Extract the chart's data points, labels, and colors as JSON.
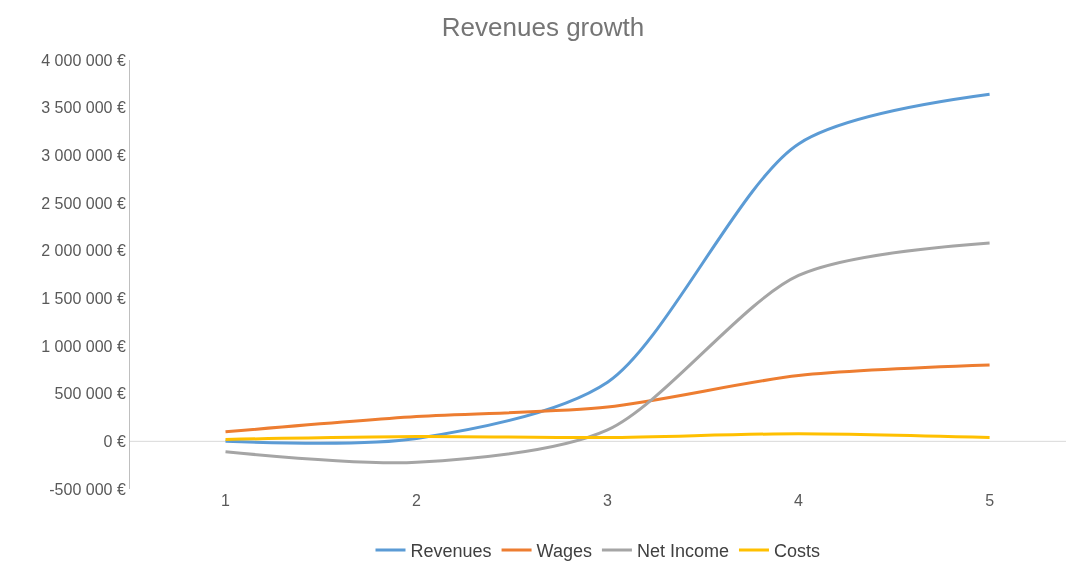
{
  "chart_data": {
    "type": "line",
    "title": "Revenues growth",
    "categories": [
      "1",
      "2",
      "3",
      "4",
      "5"
    ],
    "series": [
      {
        "name": "Revenues",
        "color": "#5b9bd5",
        "values": [
          0,
          30000,
          620000,
          3120000,
          3640000
        ]
      },
      {
        "name": "Wages",
        "color": "#ed7d31",
        "values": [
          100000,
          260000,
          360000,
          690000,
          800000
        ]
      },
      {
        "name": "Net Income",
        "color": "#a5a5a5",
        "values": [
          -110000,
          -220000,
          120000,
          1740000,
          2080000
        ]
      },
      {
        "name": "Costs",
        "color": "#ffc000",
        "values": [
          20000,
          50000,
          40000,
          80000,
          40000
        ]
      }
    ],
    "ylim": [
      -500000,
      4000000
    ],
    "yticks": [
      {
        "value": -500000,
        "label": "-500 000 €"
      },
      {
        "value": 0,
        "label": "0 €"
      },
      {
        "value": 500000,
        "label": "500 000 €"
      },
      {
        "value": 1000000,
        "label": "1 000 000 €"
      },
      {
        "value": 1500000,
        "label": "1 500 000 €"
      },
      {
        "value": 2000000,
        "label": "2 000 000 €"
      },
      {
        "value": 2500000,
        "label": "2 500 000 €"
      },
      {
        "value": 3000000,
        "label": "3 000 000 €"
      },
      {
        "value": 3500000,
        "label": "3 500 000 €"
      },
      {
        "value": 4000000,
        "label": "4 000 000 €"
      }
    ],
    "ref_lines": [
      {
        "axis": "y",
        "value": 0,
        "color": "#d9d9d9"
      }
    ],
    "grid": false,
    "legend": "bottom",
    "marker": "none",
    "line_style": "solid"
  }
}
